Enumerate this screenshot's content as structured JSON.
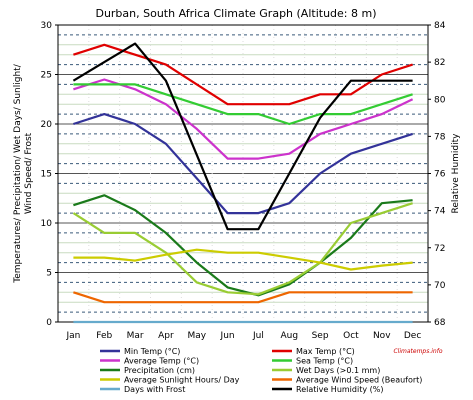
{
  "chart_data": {
    "type": "line",
    "title": "Durban, South Africa Climate Graph (Altitude: 8 m)",
    "ylabel_left": "Temperatures/ Precipitation/ Wet Days/ Sunlight/ Wind Speed/ Frost",
    "ylabel_right": "Relative Humidity",
    "categories": [
      "Jan",
      "Feb",
      "Mar",
      "Apr",
      "May",
      "Jun",
      "Jul",
      "Aug",
      "Sep",
      "Oct",
      "Nov",
      "Dec"
    ],
    "ylim_left": [
      0,
      30
    ],
    "yticks_left": [
      "0",
      "5",
      "10",
      "15",
      "20",
      "25",
      "30"
    ],
    "ylim_right": [
      68,
      84
    ],
    "yticks_right": [
      "68",
      "70",
      "72",
      "74",
      "76",
      "78",
      "80",
      "82",
      "84"
    ],
    "grid": true,
    "watermark": "Climatemps.info",
    "legend_position": "bottom",
    "series": [
      {
        "name": "Min Temp (°C)",
        "axis": "left",
        "color": "#333399",
        "values": [
          20,
          21,
          20,
          18,
          14.5,
          11,
          11,
          12,
          15,
          17,
          18,
          19
        ]
      },
      {
        "name": "Max Temp (°C)",
        "axis": "left",
        "color": "#e00000",
        "values": [
          27,
          28,
          27,
          26,
          24,
          22,
          22,
          22,
          23,
          23,
          25,
          26
        ]
      },
      {
        "name": "Average Temp (°C)",
        "axis": "left",
        "color": "#cc33cc",
        "values": [
          23.5,
          24.5,
          23.5,
          22,
          19.5,
          16.5,
          16.5,
          17,
          19,
          20,
          21,
          22.5
        ]
      },
      {
        "name": "Sea Temp (°C)",
        "axis": "left",
        "color": "#33cc33",
        "values": [
          24,
          24,
          24,
          23,
          22,
          21,
          21,
          20,
          21,
          21,
          22,
          23
        ]
      },
      {
        "name": "Precipitation (cm)",
        "axis": "left",
        "color": "#1a7a1a",
        "values": [
          11.8,
          12.8,
          11.3,
          9,
          6,
          3.5,
          2.7,
          3.8,
          6,
          8.5,
          12,
          12.3
        ]
      },
      {
        "name": "Wet Days (>0.1 mm)",
        "axis": "left",
        "color": "#99cc33",
        "values": [
          11,
          9,
          9,
          7,
          4,
          3,
          2.8,
          4,
          6,
          10,
          11,
          12
        ]
      },
      {
        "name": "Average Sunlight Hours/ Day",
        "axis": "left",
        "color": "#cccc00",
        "values": [
          6.5,
          6.5,
          6.2,
          6.8,
          7.3,
          7,
          7,
          6.5,
          6,
          5.3,
          5.7,
          6
        ]
      },
      {
        "name": "Average Wind Speed (Beaufort)",
        "axis": "left",
        "color": "#ee6600",
        "values": [
          3,
          2,
          2,
          2,
          2,
          2,
          2,
          3,
          3,
          3,
          3,
          3
        ]
      },
      {
        "name": "Days with Frost",
        "axis": "left",
        "color": "#66aacc",
        "values": [
          0,
          0,
          0,
          0,
          0,
          0,
          0,
          0,
          0,
          0,
          0,
          0
        ]
      },
      {
        "name": "Relative Humidity (%)",
        "axis": "right",
        "color": "#000000",
        "step": true,
        "values": [
          81,
          82,
          83,
          81,
          77,
          73,
          73,
          76,
          79,
          81,
          81,
          81
        ]
      }
    ],
    "legend_order": [
      0,
      1,
      2,
      3,
      4,
      5,
      6,
      7,
      8,
      9
    ]
  }
}
